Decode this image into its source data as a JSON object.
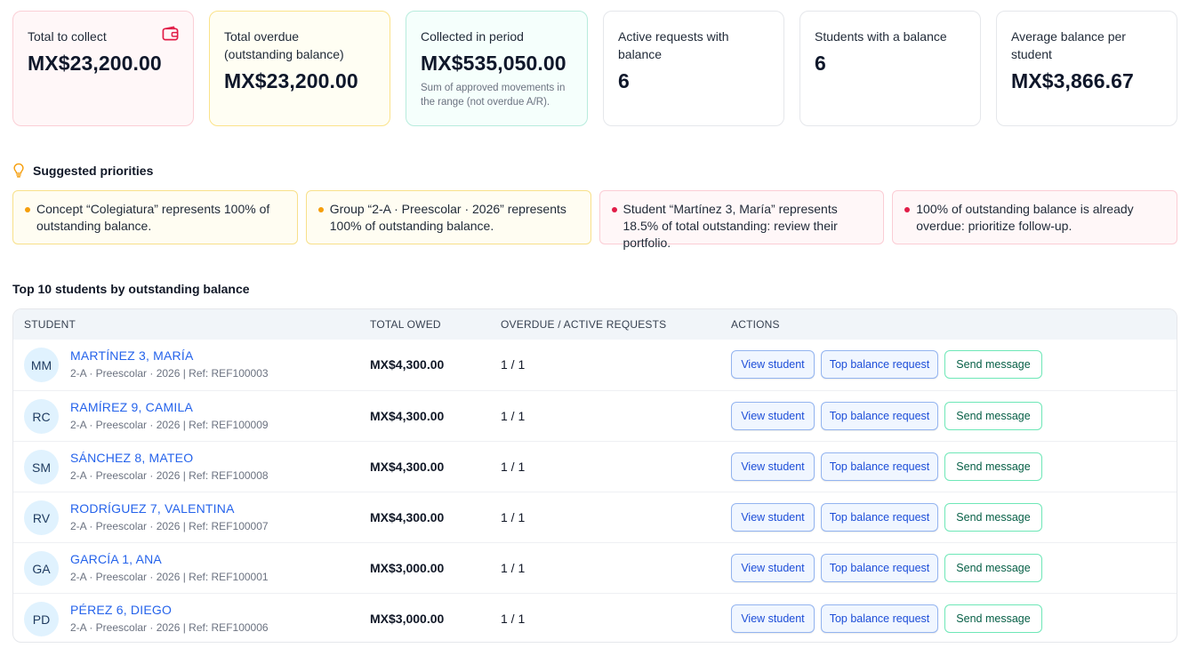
{
  "kpis": [
    {
      "label": "Total to collect",
      "value": "MX$23,200.00",
      "note": ""
    },
    {
      "label": "Total overdue (outstanding balance)",
      "value": "MX$23,200.00",
      "note": ""
    },
    {
      "label": "Collected in period",
      "value": "MX$535,050.00",
      "note": "Sum of approved movements in the range (not overdue A/R)."
    },
    {
      "label": "Active requests with balance",
      "value": "6",
      "note": ""
    },
    {
      "label": "Students with a balance",
      "value": "6",
      "note": ""
    },
    {
      "label": "Average balance per student",
      "value": "MX$3,866.67",
      "note": ""
    }
  ],
  "priorities": {
    "title": "Suggested priorities",
    "items": [
      {
        "text": "Concept “Colegiatura” represents 100% of outstanding balance.",
        "level": "warning"
      },
      {
        "text": "Group “2-A · Preescolar · 2026” represents 100% of outstanding balance.",
        "level": "warning"
      },
      {
        "text": "Student “Martínez 3, María” represents 18.5% of total outstanding: review their portfolio.",
        "level": "danger"
      },
      {
        "text": "100% of outstanding balance is already overdue: prioritize follow-up.",
        "level": "danger"
      }
    ]
  },
  "table": {
    "title": "Top 10 students by outstanding balance",
    "headers": {
      "student": "STUDENT",
      "total": "TOTAL OWED",
      "overdue": "OVERDUE / ACTIVE REQUESTS",
      "actions": "ACTIONS"
    },
    "buttons": {
      "view": "View student",
      "top": "Top balance request",
      "message": "Send message"
    },
    "rows": [
      {
        "initials": "MM",
        "name": "MARTÍNEZ 3, MARÍA",
        "meta": "2-A · Preescolar · 2026 | Ref: REF100003",
        "owed": "MX$4,300.00",
        "ratio": "1 / 1"
      },
      {
        "initials": "RC",
        "name": "RAMÍREZ 9, CAMILA",
        "meta": "2-A · Preescolar · 2026 | Ref: REF100009",
        "owed": "MX$4,300.00",
        "ratio": "1 / 1"
      },
      {
        "initials": "SM",
        "name": "SÁNCHEZ 8, MATEO",
        "meta": "2-A · Preescolar · 2026 | Ref: REF100008",
        "owed": "MX$4,300.00",
        "ratio": "1 / 1"
      },
      {
        "initials": "RV",
        "name": "RODRÍGUEZ 7, VALENTINA",
        "meta": "2-A · Preescolar · 2026 | Ref: REF100007",
        "owed": "MX$4,300.00",
        "ratio": "1 / 1"
      },
      {
        "initials": "GA",
        "name": "GARCÍA 1, ANA",
        "meta": "2-A · Preescolar · 2026 | Ref: REF100001",
        "owed": "MX$3,000.00",
        "ratio": "1 / 1"
      },
      {
        "initials": "PD",
        "name": "PÉREZ 6, DIEGO",
        "meta": "2-A · Preescolar · 2026 | Ref: REF100006",
        "owed": "MX$3,000.00",
        "ratio": "1 / 1"
      }
    ]
  },
  "colors": {
    "accent": "#2563eb",
    "danger": "#e11d48",
    "warning": "#f59e0b",
    "success": "#10b981"
  },
  "icons": {
    "wallet": "wallet-icon",
    "bulb": "lightbulb-icon"
  }
}
